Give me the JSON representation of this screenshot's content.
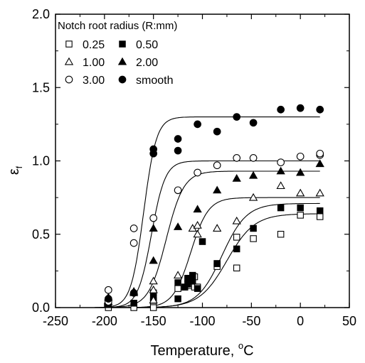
{
  "chart_data": {
    "type": "scatter",
    "xlabel": "Temperature, °C",
    "xlabel_base": "Temperature, ",
    "xlabel_sup": "o",
    "xlabel_unit": "C",
    "ylabel": "εf",
    "ylabel_base": "ε",
    "ylabel_sub": "f",
    "xlim": [
      -250,
      50
    ],
    "ylim": [
      0.0,
      2.0
    ],
    "xticks": [
      -250,
      -200,
      -150,
      -100,
      -50,
      0,
      50
    ],
    "yticks": [
      0.0,
      0.5,
      1.0,
      1.5,
      2.0
    ],
    "xtick_labels": [
      "-250",
      "-200",
      "-150",
      "-100",
      "-50",
      "0",
      "50"
    ],
    "ytick_labels": [
      "0.0",
      "0.5",
      "1.0",
      "1.5",
      "2.0"
    ],
    "legend": {
      "title": "Notch root radius (R:mm)",
      "placement": "top-left",
      "entries": [
        "0.25",
        "0.50",
        "1.00",
        "2.00",
        "3.00",
        "smooth"
      ]
    },
    "series": [
      {
        "name": "0.25",
        "marker": "square-open",
        "x": [
          -196,
          -170,
          -150,
          -150,
          -125,
          -118,
          -112,
          -110,
          -108,
          -108,
          -105,
          -85,
          -65,
          -65,
          -48,
          -20,
          0,
          20
        ],
        "y": [
          0.0,
          0.0,
          0.0,
          0.04,
          0.13,
          0.14,
          0.15,
          0.2,
          0.21,
          0.14,
          0.14,
          0.28,
          0.27,
          0.48,
          0.47,
          0.5,
          0.63,
          0.62
        ]
      },
      {
        "name": "0.50",
        "marker": "square-filled",
        "x": [
          -196,
          -170,
          -150,
          -150,
          -150,
          -125,
          -125,
          -118,
          -115,
          -115,
          -112,
          -110,
          -110,
          -105,
          -100,
          -85,
          -85,
          -65,
          -48,
          -20,
          0,
          20
        ],
        "y": [
          0.02,
          0.03,
          0.05,
          0.07,
          0.1,
          0.06,
          0.17,
          0.14,
          0.16,
          0.2,
          0.19,
          0.18,
          0.22,
          0.13,
          0.45,
          0.3,
          0.3,
          0.4,
          0.54,
          0.68,
          0.68,
          0.66
        ]
      },
      {
        "name": "1.00",
        "marker": "triangle-open",
        "x": [
          -196,
          -170,
          -150,
          -150,
          -150,
          -125,
          -110,
          -105,
          -105,
          -85,
          -65,
          -48,
          -20,
          0,
          20
        ],
        "y": [
          0.04,
          0.1,
          0.05,
          0.12,
          0.18,
          0.22,
          0.54,
          0.56,
          0.5,
          0.54,
          0.59,
          0.75,
          0.83,
          0.78,
          0.78
        ]
      },
      {
        "name": "2.00",
        "marker": "triangle-filled",
        "x": [
          -196,
          -170,
          -150,
          -150,
          -125,
          -105,
          -85,
          -65,
          -48,
          -20,
          0,
          20
        ],
        "y": [
          0.07,
          0.11,
          0.54,
          0.32,
          0.55,
          0.67,
          0.8,
          0.88,
          0.9,
          0.93,
          0.92,
          0.98
        ]
      },
      {
        "name": "3.00",
        "marker": "circle-open",
        "x": [
          -196,
          -196,
          -170,
          -170,
          -150,
          -125,
          -105,
          -85,
          -65,
          -48,
          -20,
          0,
          20,
          20
        ],
        "y": [
          0.04,
          0.12,
          0.44,
          0.54,
          0.61,
          0.8,
          0.92,
          0.97,
          1.02,
          1.02,
          0.99,
          1.03,
          1.04,
          1.05
        ],
        "note": ""
      },
      {
        "name": "smooth",
        "marker": "circle-filled",
        "x": [
          -196,
          -170,
          -150,
          -150,
          -125,
          -125,
          -105,
          -85,
          -65,
          -48,
          -20,
          0,
          20
        ],
        "y": [
          0.06,
          0.1,
          1.05,
          1.08,
          1.07,
          1.15,
          1.25,
          1.2,
          1.3,
          1.26,
          1.35,
          1.36,
          1.35
        ]
      }
    ],
    "curves": [
      {
        "name": "0.25",
        "A": 0.0,
        "B": 0.64,
        "T0": -75,
        "C": 28
      },
      {
        "name": "0.50",
        "A": 0.0,
        "B": 0.71,
        "T0": -80,
        "C": 25
      },
      {
        "name": "1.00",
        "A": 0.0,
        "B": 0.75,
        "T0": -112,
        "C": 18
      },
      {
        "name": "2.00",
        "A": 0.0,
        "B": 0.93,
        "T0": -137,
        "C": 18
      },
      {
        "name": "3.00",
        "A": 0.0,
        "B": 1.0,
        "T0": -152,
        "C": 14
      },
      {
        "name": "smooth",
        "A": 0.0,
        "B": 1.3,
        "T0": -160,
        "C": 13
      }
    ],
    "grid": false
  }
}
